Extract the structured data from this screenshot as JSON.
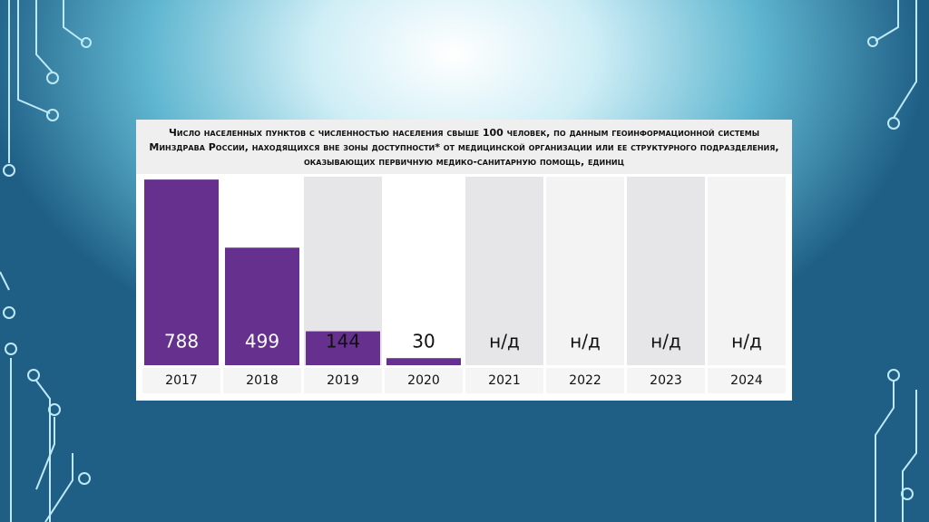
{
  "chart_data": {
    "type": "bar",
    "title": "Число населенных пунктов с численностью населения свыше 100 человек, по данным геоинформационной системы Минздрава России, находящихся вне зоны доступности* от медицинской организации или ее структурного подразделения, оказывающих первичную медико-санитарную помощь, единиц",
    "categories": [
      "2017",
      "2018",
      "2019",
      "2020",
      "2021",
      "2022",
      "2023",
      "2024"
    ],
    "values": [
      788,
      499,
      144,
      30,
      null,
      null,
      null,
      null
    ],
    "value_labels": [
      "788",
      "499",
      "144",
      "30",
      "н/д",
      "н/д",
      "н/д",
      "н/д"
    ],
    "color": "#66308f",
    "ylim": [
      0,
      800
    ]
  }
}
